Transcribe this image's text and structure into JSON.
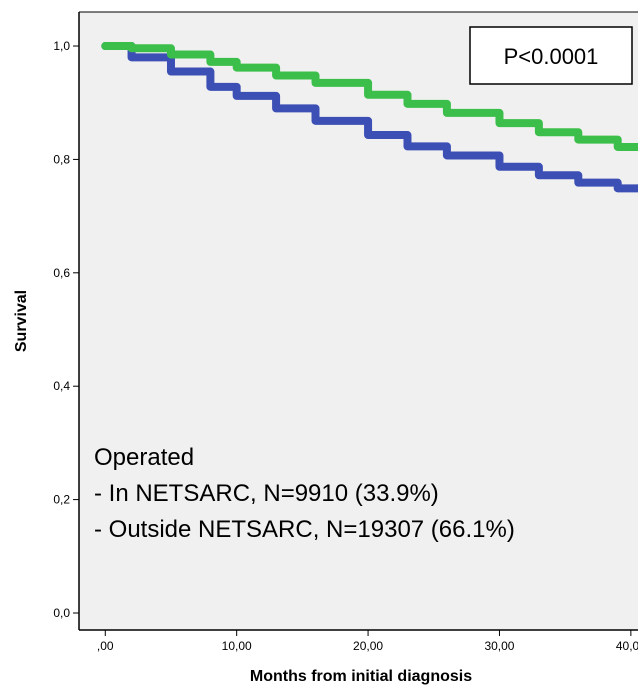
{
  "chart_data": {
    "type": "line",
    "xlabel": "Months from initial diagnosis",
    "ylabel": "Survival",
    "xlim": [
      -2,
      41
    ],
    "ylim": [
      -0.03,
      1.06
    ],
    "x_ticks": [
      0,
      10,
      20,
      30,
      40
    ],
    "x_tick_labels": [
      ",00",
      "10,00",
      "20,00",
      "30,00",
      "40,00"
    ],
    "y_ticks": [
      0.0,
      0.2,
      0.4,
      0.6,
      0.8,
      1.0
    ],
    "y_tick_labels": [
      "0,0",
      "0,2",
      "0,4",
      "0,6",
      "0,8",
      "1,0"
    ],
    "grid": false,
    "background": "#f0f0f0",
    "series": [
      {
        "color": "#3c4fb5",
        "x": [
          0,
          2,
          5,
          8,
          10,
          13,
          16,
          20,
          23,
          26,
          30,
          33,
          36,
          39,
          41
        ],
        "y": [
          1.0,
          0.98,
          0.955,
          0.928,
          0.912,
          0.89,
          0.868,
          0.843,
          0.823,
          0.807,
          0.787,
          0.772,
          0.759,
          0.749,
          0.739
        ]
      },
      {
        "color": "#3cbf4a",
        "x": [
          0,
          2,
          5,
          8,
          10,
          13,
          16,
          20,
          23,
          26,
          30,
          33,
          36,
          39,
          41
        ],
        "y": [
          1.0,
          0.996,
          0.985,
          0.972,
          0.962,
          0.948,
          0.935,
          0.914,
          0.898,
          0.882,
          0.864,
          0.848,
          0.835,
          0.822,
          0.812
        ]
      }
    ],
    "annotations": {
      "pvalue": "P<0.0001",
      "group_heading": "Operated",
      "group_lines": [
        "- In NETSARC, N=9910 (33.9%)",
        "- Outside NETSARC, N=19307 (66.1%)"
      ]
    }
  }
}
